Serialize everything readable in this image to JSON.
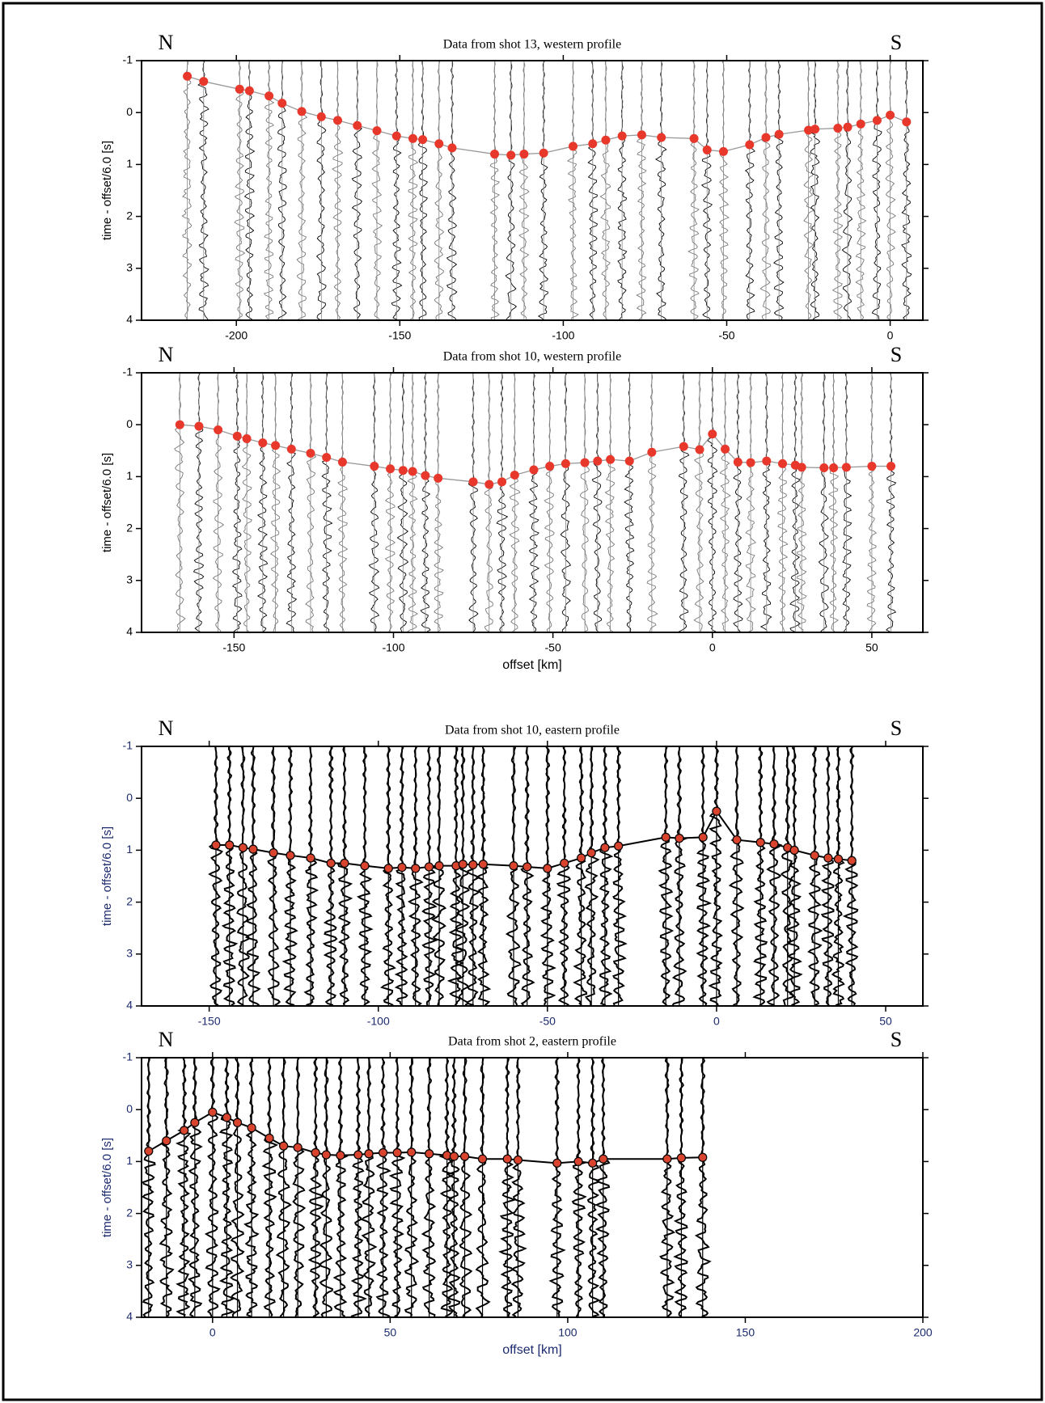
{
  "chart_data": [
    {
      "type": "scatter",
      "title": "Data from shot 13, western profile",
      "left_label": "N",
      "right_label": "S",
      "ylabel": "time - offset/6.0 [s]",
      "style": "light",
      "color": "#e8372b",
      "line_color": "#999999",
      "tick_color": "#000000",
      "xlim": [
        -229,
        10
      ],
      "xticks": [
        -200,
        -150,
        -100,
        -50,
        0
      ],
      "ylim": [
        4,
        -1
      ],
      "yticks": [
        -1,
        0,
        1,
        2,
        3,
        4
      ],
      "x": [
        -215,
        -210,
        -199,
        -196,
        -190,
        -186,
        -180,
        -174,
        -169,
        -163,
        -157,
        -151,
        -146,
        -143,
        -138,
        -134,
        -121,
        -116,
        -112,
        -106,
        -97,
        -91,
        -87,
        -82,
        -76,
        -70,
        -60,
        -56,
        -51,
        -43,
        -38,
        -34,
        -25,
        -23,
        -16,
        -13,
        -9,
        -4,
        0,
        5
      ],
      "values": [
        -0.7,
        -0.6,
        -0.45,
        -0.42,
        -0.32,
        -0.18,
        -0.02,
        0.08,
        0.15,
        0.25,
        0.35,
        0.45,
        0.5,
        0.52,
        0.6,
        0.68,
        0.8,
        0.82,
        0.8,
        0.78,
        0.65,
        0.6,
        0.53,
        0.45,
        0.43,
        0.48,
        0.5,
        0.72,
        0.75,
        0.62,
        0.48,
        0.42,
        0.34,
        0.32,
        0.3,
        0.28,
        0.22,
        0.15,
        0.05,
        0.18
      ]
    },
    {
      "type": "scatter",
      "title": "Data from shot 10, western profile",
      "left_label": "N",
      "right_label": "S",
      "ylabel": "time - offset/6.0 [s]",
      "xlabel": "offset [km]",
      "style": "light",
      "color": "#e8372b",
      "line_color": "#999999",
      "tick_color": "#000000",
      "xlim": [
        -179,
        66
      ],
      "xticks": [
        -150,
        -100,
        -50,
        0,
        50
      ],
      "ylim": [
        4,
        -1
      ],
      "yticks": [
        -1,
        0,
        1,
        2,
        3,
        4
      ],
      "x": [
        -167,
        -161,
        -155,
        -149,
        -146,
        -141,
        -137,
        -132,
        -126,
        -121,
        -116,
        -106,
        -101,
        -97,
        -94,
        -90,
        -86,
        -75,
        -70,
        -66,
        -62,
        -56,
        -51,
        -46,
        -40,
        -36,
        -32,
        -26,
        -19,
        -9,
        -4,
        0,
        4,
        8,
        12,
        17,
        22,
        26,
        28,
        35,
        38,
        42,
        50,
        56
      ],
      "values": [
        0,
        0.03,
        0.1,
        0.22,
        0.27,
        0.35,
        0.4,
        0.47,
        0.55,
        0.63,
        0.72,
        0.8,
        0.85,
        0.88,
        0.9,
        0.98,
        1.03,
        1.1,
        1.15,
        1.1,
        0.97,
        0.87,
        0.8,
        0.75,
        0.73,
        0.7,
        0.67,
        0.7,
        0.53,
        0.42,
        0.48,
        0.18,
        0.47,
        0.72,
        0.73,
        0.7,
        0.75,
        0.78,
        0.82,
        0.83,
        0.83,
        0.82,
        0.8,
        0.8
      ]
    },
    {
      "type": "scatter",
      "title": "Data from shot 10, eastern profile",
      "left_label": "N",
      "right_label": "S",
      "ylabel": "time - offset/6.0 [s]",
      "style": "heavy",
      "color": "#d9442e",
      "line_color": "#000000",
      "tick_color": "#1c2a6e",
      "xlim": [
        -170,
        61
      ],
      "xticks": [
        -150,
        -100,
        -50,
        0,
        50
      ],
      "ylim": [
        4,
        -1
      ],
      "yticks": [
        -1,
        0,
        1,
        2,
        3,
        4
      ],
      "x": [
        -148,
        -144,
        -140,
        -137,
        -131,
        -126,
        -120,
        -114,
        -110,
        -104,
        -97,
        -93,
        -89,
        -85,
        -82,
        -77,
        -75,
        -72,
        -69,
        -60,
        -56,
        -50,
        -45,
        -40,
        -37,
        -33,
        -29,
        -15,
        -11,
        -4,
        0,
        6,
        13,
        17,
        21,
        23,
        29,
        33,
        36,
        40
      ],
      "values": [
        0.9,
        0.9,
        0.95,
        0.98,
        1.05,
        1.1,
        1.15,
        1.25,
        1.25,
        1.3,
        1.35,
        1.33,
        1.35,
        1.32,
        1.3,
        1.3,
        1.27,
        1.28,
        1.27,
        1.3,
        1.32,
        1.35,
        1.25,
        1.15,
        1.05,
        0.95,
        0.92,
        0.75,
        0.77,
        0.75,
        0.25,
        0.8,
        0.85,
        0.88,
        0.95,
        1.0,
        1.1,
        1.15,
        1.17,
        1.2
      ]
    },
    {
      "type": "scatter",
      "title": "Data from shot 2, eastern profile",
      "left_label": "N",
      "right_label": "S",
      "ylabel": "time - offset/6.0 [s]",
      "xlabel": "offset [km]",
      "style": "heavy",
      "color": "#d9442e",
      "line_color": "#000000",
      "tick_color": "#1c2a6e",
      "xlim": [
        -20,
        200
      ],
      "xticks": [
        0,
        50,
        100,
        150,
        200
      ],
      "ylim": [
        4,
        -1
      ],
      "yticks": [
        -1,
        0,
        1,
        2,
        3,
        4
      ],
      "x": [
        -18,
        -13,
        -8,
        -5,
        0,
        4,
        7,
        11,
        16,
        20,
        24,
        29,
        32,
        36,
        41,
        44,
        48,
        52,
        56,
        61,
        66,
        68,
        71,
        76,
        83,
        86,
        97,
        103,
        107,
        110,
        128,
        132,
        138
      ],
      "values": [
        0.8,
        0.6,
        0.4,
        0.25,
        0.05,
        0.15,
        0.25,
        0.35,
        0.55,
        0.7,
        0.73,
        0.83,
        0.87,
        0.88,
        0.87,
        0.85,
        0.83,
        0.83,
        0.82,
        0.85,
        0.88,
        0.9,
        0.9,
        0.95,
        0.95,
        0.97,
        1.03,
        1.0,
        1.03,
        0.95,
        0.95,
        0.93,
        0.92
      ]
    }
  ]
}
